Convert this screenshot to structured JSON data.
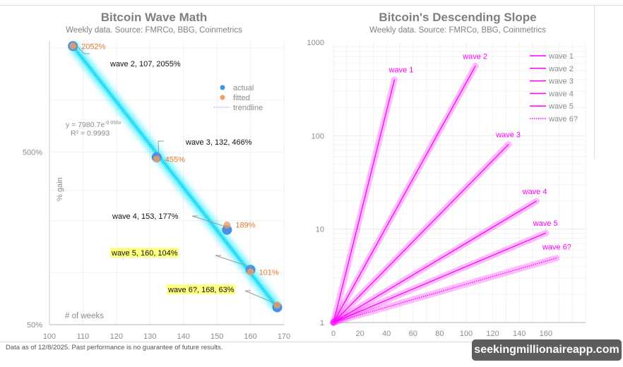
{
  "chart_data": [
    {
      "type": "scatter",
      "title": "Bitcoin Wave Math",
      "subtitle": "Weekly data.  Source: FMRCo, BBG, Coinmetrics",
      "xlabel": "# of weeks",
      "ylabel": "% gain",
      "xlim": [
        100,
        170
      ],
      "ylim": [
        50,
        2200
      ],
      "yscale": "log",
      "x_ticks": [
        "100",
        "110",
        "120",
        "130",
        "140",
        "150",
        "160",
        "170"
      ],
      "y_ticks": [
        {
          "value": 500,
          "label": "500%"
        },
        {
          "value": 50,
          "label": "50%"
        }
      ],
      "grid": true,
      "legend_position": "top-right",
      "legend": [
        "actual",
        "fitted",
        "trendline"
      ],
      "trendline_equation": "y = 7980.7e",
      "trendline_exponent": "-0.056x",
      "r_squared": "R² = 0.9993",
      "series": [
        {
          "name": "actual",
          "color": "#4a90e2",
          "x": [
            107,
            132,
            153,
            160,
            168
          ],
          "y": [
            2055,
            466,
            177,
            104,
            63
          ]
        },
        {
          "name": "fitted",
          "color": "#f0a060",
          "x": [
            107,
            132,
            153,
            160,
            168
          ],
          "y": [
            2052,
            455,
            189,
            101,
            65
          ]
        }
      ],
      "fitted_labels": [
        "2052%",
        "455%",
        "189%",
        "101%"
      ],
      "annotations": [
        {
          "text": "wave 2, 107, 2055%",
          "highlight": false
        },
        {
          "text": "wave 3, 132, 466%",
          "highlight": false
        },
        {
          "text": "wave 4, 153, 177%",
          "highlight": false
        },
        {
          "text": "wave 5, 160, 104%",
          "highlight": true
        },
        {
          "text": "wave 6?, 168, 63%",
          "highlight": true
        }
      ],
      "colors": {
        "trend_glow": "#00e5ff",
        "fitted_label": "#e8782a",
        "highlight": "#ffff80"
      }
    },
    {
      "type": "line",
      "title": "Bitcoin's Descending Slope",
      "subtitle": "Weekly data.  Source: FMRCo, BBG, Coinmetrics",
      "xlim": [
        0,
        190
      ],
      "ylim": [
        1,
        1000
      ],
      "yscale": "log",
      "x_ticks": [
        "0",
        "20",
        "40",
        "60",
        "80",
        "100",
        "120",
        "140",
        "160"
      ],
      "y_ticks": [
        "1",
        "10",
        "100",
        "1000"
      ],
      "grid": true,
      "legend_position": "top-right",
      "color": "#ff00ff",
      "series": [
        {
          "name": "wave 1",
          "x": [
            0,
            46
          ],
          "y": [
            1,
            400
          ],
          "dotted": false
        },
        {
          "name": "wave 2",
          "x": [
            0,
            107
          ],
          "y": [
            1,
            560
          ],
          "dotted": false
        },
        {
          "name": "wave 3",
          "x": [
            0,
            132
          ],
          "y": [
            1,
            81
          ],
          "dotted": false
        },
        {
          "name": "wave 4",
          "x": [
            0,
            153
          ],
          "y": [
            1,
            20
          ],
          "dotted": false
        },
        {
          "name": "wave 5",
          "x": [
            0,
            160
          ],
          "y": [
            1,
            9.1
          ],
          "dotted": false
        },
        {
          "name": "wave 6?",
          "x": [
            0,
            168
          ],
          "y": [
            1,
            4.9
          ],
          "dotted": true
        }
      ]
    }
  ],
  "footer": "Data as of 12/8/2025. Past performance is no guarantee of future results.",
  "watermark": "seekingmillionaireapp.com"
}
